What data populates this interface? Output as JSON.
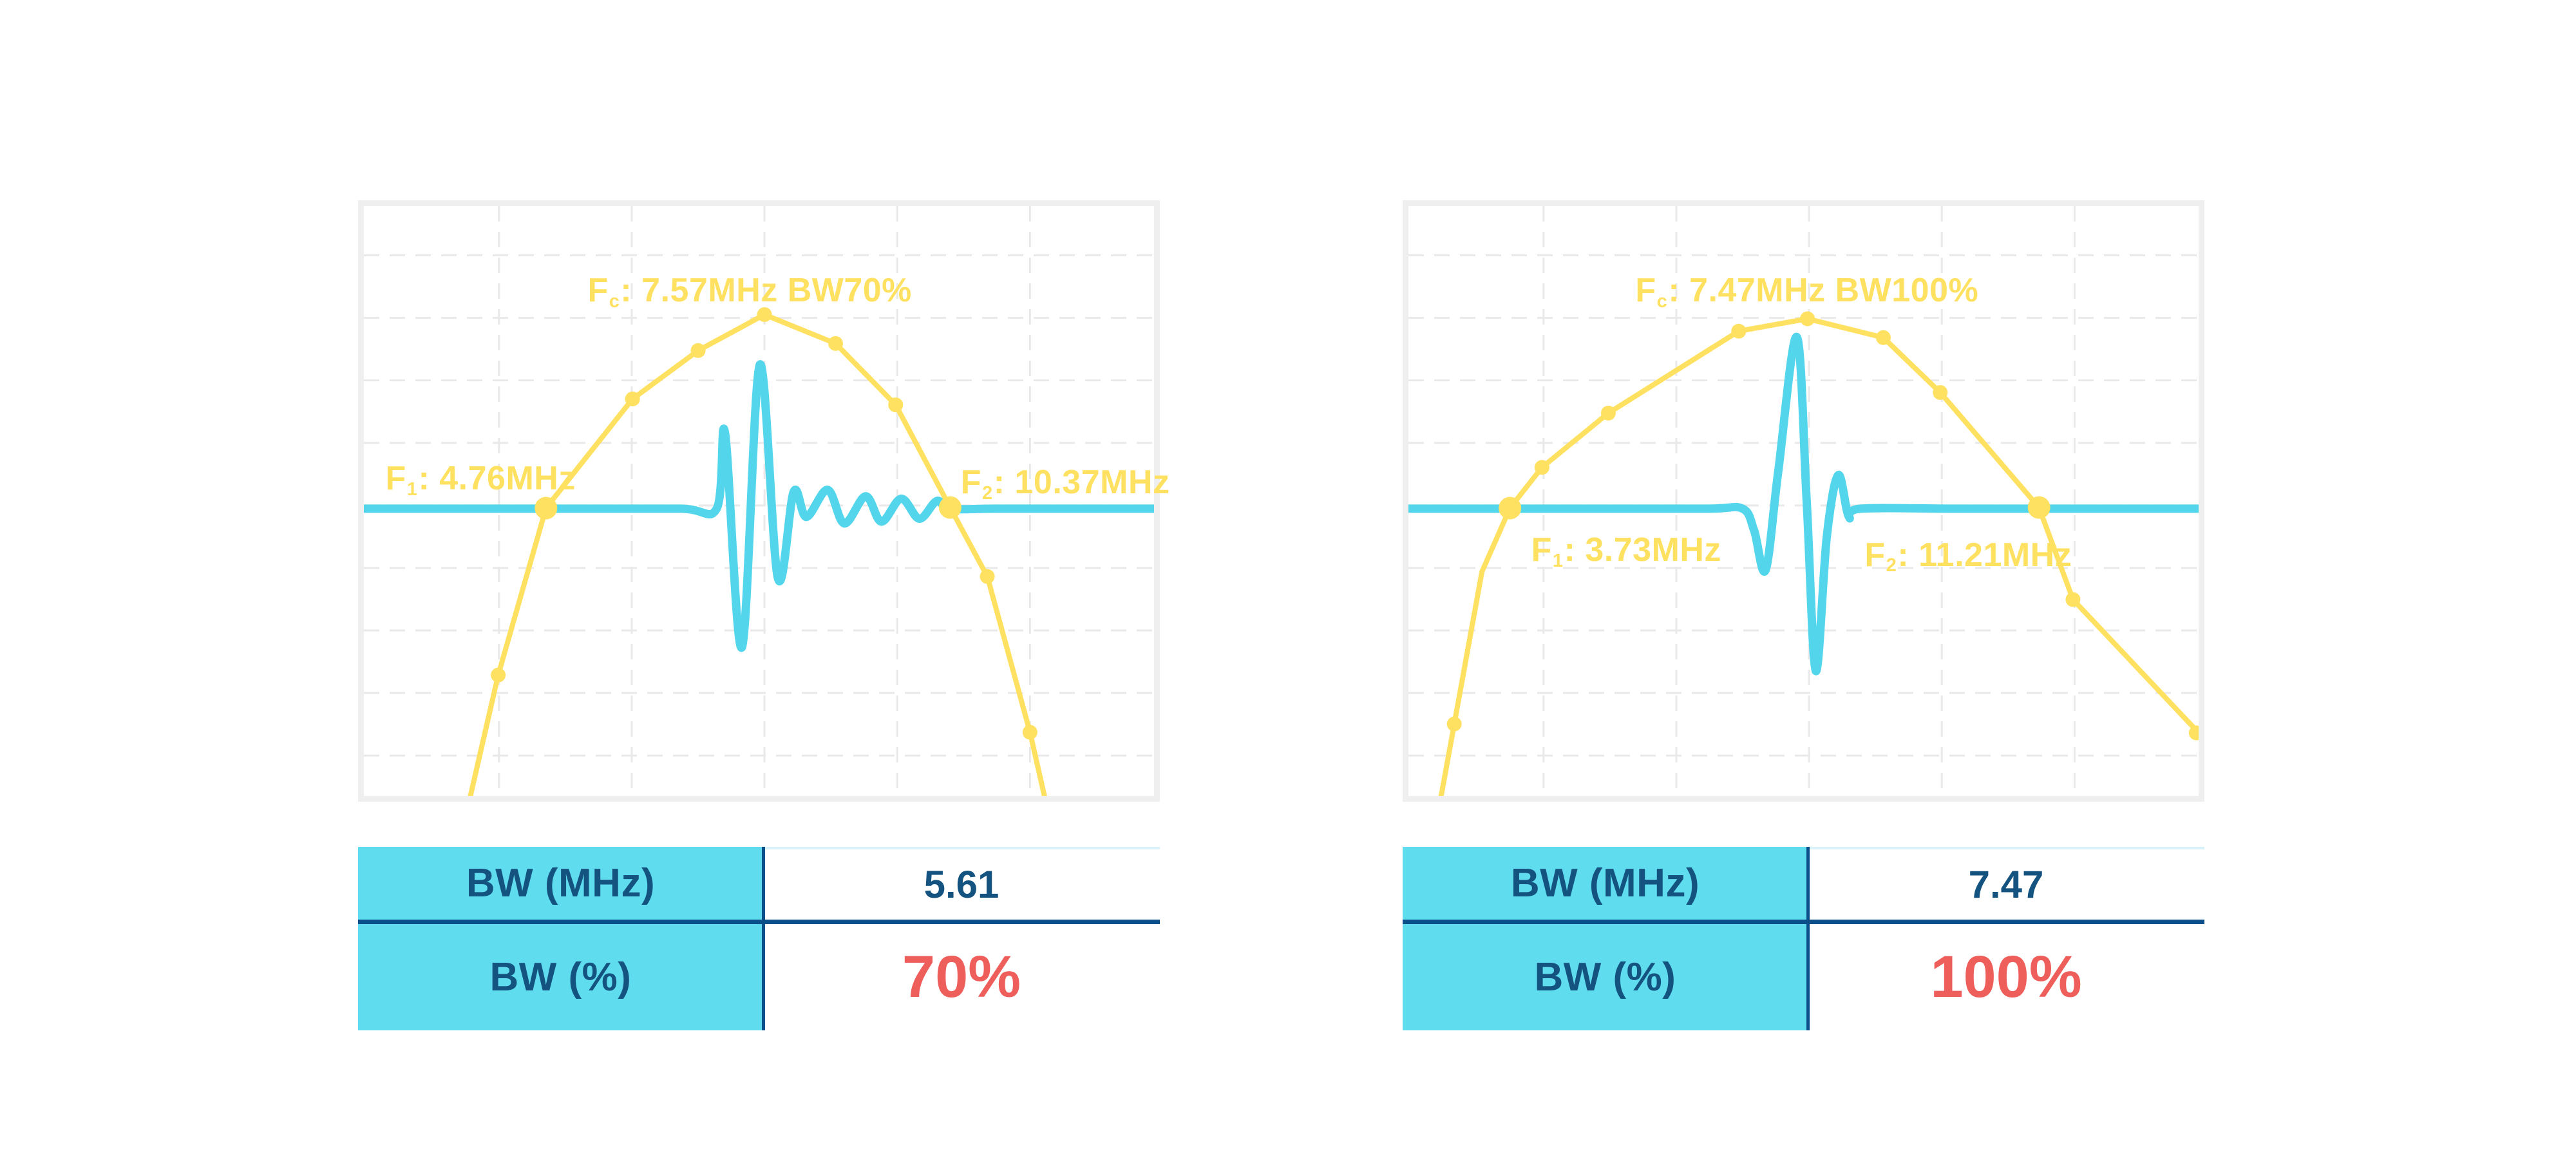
{
  "colors": {
    "background": "#FFFFFF",
    "spectrum": "#FFE161",
    "waveform": "#53D6EC",
    "grid": "#E9E9E9",
    "frame": "#EFEFEF",
    "table_header_bg": "#60DCEF",
    "table_text_navy": "#14537F",
    "table_rule_blue": "#0A4E8A",
    "highlight_red": "#EE5E5B"
  },
  "chart_data": [
    {
      "type": "line",
      "name": "pulse-spectrum-bw70",
      "center_frequency_mhz": 7.57,
      "f1_mhz": 4.76,
      "f2_mhz": 10.37,
      "bandwidth_mhz": 5.61,
      "bandwidth_percent": 70,
      "annotations": {
        "fc": {
          "prefix": "F",
          "sub": "c",
          "text": ": 7.57MHz BW70%",
          "x": 0.481,
          "y": 0.105,
          "align": "center"
        },
        "f1": {
          "prefix": "F",
          "sub": "1",
          "text": ": 4.76MHz",
          "x": 0.02,
          "y": 0.424,
          "align": "left"
        },
        "f2": {
          "prefix": "F",
          "sub": "2",
          "text": ": 10.37MHz",
          "x": 0.748,
          "y": 0.43,
          "align": "left"
        }
      },
      "grid": {
        "x_lines": [
          0.171,
          0.339,
          0.507,
          0.675,
          0.843
        ],
        "y_lines": [
          0.0835,
          0.1895,
          0.2955,
          0.4015,
          0.5075,
          0.6135,
          0.7195,
          0.8255,
          0.9315
        ]
      },
      "baseline_y": 0.513,
      "spectrum": {
        "points": [
          [
            0.128,
            1.04
          ],
          [
            0.17,
            0.795
          ],
          [
            0.2305,
            0.512
          ],
          [
            0.34,
            0.327
          ],
          [
            0.423,
            0.245
          ],
          [
            0.507,
            0.184
          ],
          [
            0.597,
            0.233
          ],
          [
            0.673,
            0.337
          ],
          [
            0.742,
            0.511
          ],
          [
            0.789,
            0.628
          ],
          [
            0.843,
            0.892
          ],
          [
            0.868,
            1.04
          ]
        ],
        "markers": [
          [
            0.17,
            0.795
          ],
          [
            0.34,
            0.327
          ],
          [
            0.423,
            0.245
          ],
          [
            0.507,
            0.184
          ],
          [
            0.597,
            0.233
          ],
          [
            0.673,
            0.337
          ],
          [
            0.789,
            0.628
          ],
          [
            0.843,
            0.892
          ]
        ],
        "big_markers": [
          [
            0.2305,
            0.512
          ],
          [
            0.742,
            0.511
          ]
        ]
      },
      "waveform": {
        "points": [
          [
            0,
            0.513
          ],
          [
            0.25,
            0.513
          ],
          [
            0.4,
            0.513
          ],
          [
            0.4465,
            0.513
          ],
          [
            0.457,
            0.384
          ],
          [
            0.4785,
            0.748
          ],
          [
            0.501,
            0.269
          ],
          [
            0.524,
            0.631
          ],
          [
            0.544,
            0.484
          ],
          [
            0.56,
            0.527
          ],
          [
            0.587,
            0.481
          ],
          [
            0.608,
            0.538
          ],
          [
            0.635,
            0.492
          ],
          [
            0.655,
            0.535
          ],
          [
            0.68,
            0.496
          ],
          [
            0.703,
            0.53
          ],
          [
            0.725,
            0.5
          ],
          [
            0.742,
            0.513
          ],
          [
            0.8,
            0.513
          ],
          [
            0.92,
            0.513
          ],
          [
            1,
            0.513
          ]
        ]
      },
      "table": {
        "rows": [
          {
            "label": "BW (MHz)",
            "value": "5.61"
          },
          {
            "label": "BW (%)",
            "value": "70%"
          }
        ]
      }
    },
    {
      "type": "line",
      "name": "pulse-spectrum-bw100",
      "center_frequency_mhz": 7.47,
      "f1_mhz": 3.73,
      "f2_mhz": 11.21,
      "bandwidth_mhz": 7.47,
      "bandwidth_percent": 100,
      "annotations": {
        "fc": {
          "prefix": "F",
          "sub": "c",
          "text": ": 7.47MHz BW100%",
          "x": 0.497,
          "y": 0.105,
          "align": "center"
        },
        "f1": {
          "prefix": "F",
          "sub": "1",
          "text": ": 3.73MHz",
          "x": 0.148,
          "y": 0.545,
          "align": "left"
        },
        "f2": {
          "prefix": "F",
          "sub": "2",
          "text": ": 11.21MHz",
          "x": 0.57,
          "y": 0.553,
          "align": "left"
        }
      },
      "grid": {
        "x_lines": [
          0.171,
          0.339,
          0.507,
          0.675,
          0.843
        ],
        "y_lines": [
          0.0835,
          0.1895,
          0.2955,
          0.4015,
          0.5075,
          0.6135,
          0.7195,
          0.8255,
          0.9315
        ]
      },
      "baseline_y": 0.513,
      "spectrum": {
        "points": [
          [
            0.036,
            1.04
          ],
          [
            0.058,
            0.878
          ],
          [
            0.093,
            0.62
          ],
          [
            0.1285,
            0.512
          ],
          [
            0.169,
            0.443
          ],
          [
            0.253,
            0.351
          ],
          [
            0.418,
            0.212
          ],
          [
            0.505,
            0.191
          ],
          [
            0.601,
            0.223
          ],
          [
            0.673,
            0.316
          ],
          [
            0.798,
            0.511
          ],
          [
            0.841,
            0.667
          ],
          [
            1.0,
            0.893
          ]
        ],
        "markers": [
          [
            0.058,
            0.878
          ],
          [
            0.169,
            0.443
          ],
          [
            0.253,
            0.351
          ],
          [
            0.418,
            0.212
          ],
          [
            0.505,
            0.191
          ],
          [
            0.601,
            0.223
          ],
          [
            0.673,
            0.316
          ],
          [
            0.841,
            0.667
          ],
          [
            0.997,
            0.893
          ]
        ],
        "big_markers": [
          [
            0.1285,
            0.512
          ],
          [
            0.798,
            0.511
          ]
        ]
      },
      "waveform": {
        "points": [
          [
            0,
            0.513
          ],
          [
            0.25,
            0.513
          ],
          [
            0.38,
            0.513
          ],
          [
            0.423,
            0.513
          ],
          [
            0.4375,
            0.55
          ],
          [
            0.452,
            0.617
          ],
          [
            0.468,
            0.45
          ],
          [
            0.4915,
            0.222
          ],
          [
            0.504,
            0.5
          ],
          [
            0.5155,
            0.788
          ],
          [
            0.5295,
            0.56
          ],
          [
            0.544,
            0.456
          ],
          [
            0.5575,
            0.527
          ],
          [
            0.572,
            0.513
          ],
          [
            0.7,
            0.513
          ],
          [
            0.9,
            0.513
          ],
          [
            1,
            0.513
          ]
        ]
      },
      "table": {
        "rows": [
          {
            "label": "BW (MHz)",
            "value": "7.47"
          },
          {
            "label": "BW (%)",
            "value": "100%"
          }
        ]
      }
    }
  ]
}
